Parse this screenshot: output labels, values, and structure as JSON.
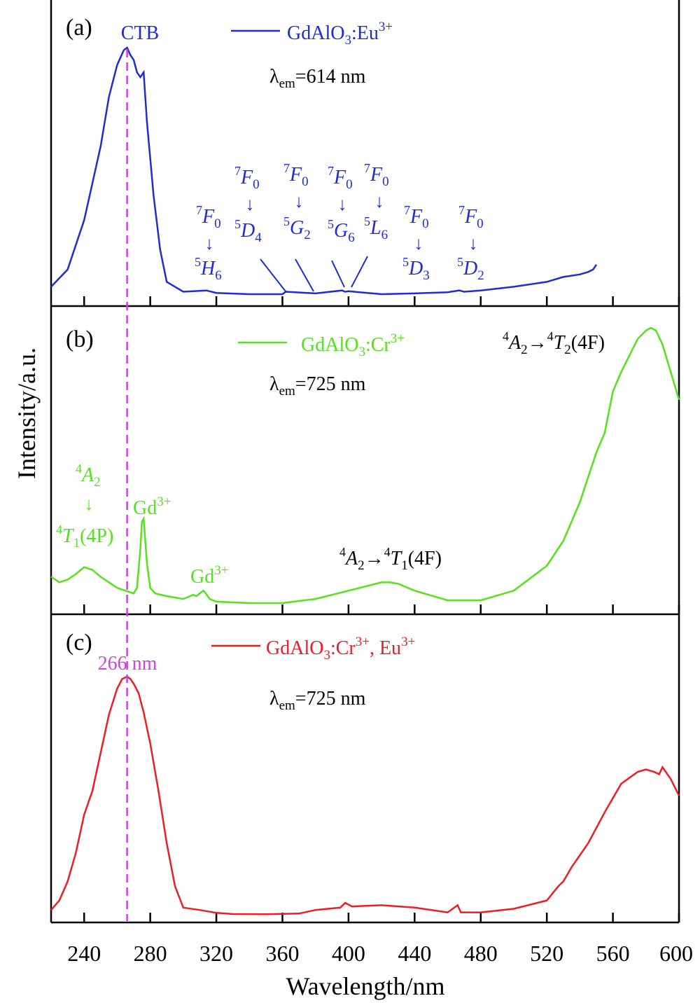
{
  "colors": {
    "panel_a": "#1f2bd6",
    "panel_b": "#55e21c",
    "panel_c": "#ee1c24",
    "guide": "#cc44dd",
    "axis": "#000000"
  },
  "chart_data": [
    {
      "type": "line",
      "panel": "(a)",
      "series": [
        {
          "name": "GdAlO3:Eu3+",
          "x": [
            220,
            230,
            240,
            250,
            255,
            260,
            264,
            266,
            268,
            270,
            272,
            274,
            276,
            278,
            282,
            286,
            290,
            300,
            314,
            320,
            340,
            360,
            362,
            380,
            396,
            398,
            400,
            420,
            440,
            460,
            467,
            470,
            480,
            500,
            520,
            530,
            540,
            545,
            548,
            550
          ],
          "y": [
            0.03,
            0.1,
            0.3,
            0.6,
            0.8,
            0.93,
            0.99,
            1.0,
            0.97,
            0.95,
            0.9,
            0.88,
            0.9,
            0.7,
            0.4,
            0.18,
            0.05,
            0.01,
            0.015,
            0.005,
            0.0,
            0.0,
            0.01,
            0.003,
            0.015,
            0.01,
            0.012,
            0.0,
            0.003,
            0.008,
            0.015,
            0.01,
            0.015,
            0.03,
            0.05,
            0.07,
            0.08,
            0.09,
            0.1,
            0.12
          ]
        }
      ],
      "annotations": {
        "peak_label": "CTB",
        "lambda_em": "λem=614 nm",
        "transitions": [
          {
            "upper": "7F0",
            "lower": "5H6"
          },
          {
            "upper": "7F0",
            "lower": "5D4"
          },
          {
            "upper": "7F0",
            "lower": "5G2"
          },
          {
            "upper": "7F0",
            "lower": "5G6"
          },
          {
            "upper": "7F0",
            "lower": "5L6"
          },
          {
            "upper": "7F0",
            "lower": "5D3"
          },
          {
            "upper": "7F0",
            "lower": "5D2"
          }
        ]
      }
    },
    {
      "type": "line",
      "panel": "(b)",
      "series": [
        {
          "name": "GdAlO3:Cr3+",
          "x": [
            220,
            225,
            230,
            235,
            240,
            245,
            250,
            255,
            260,
            265,
            270,
            272,
            274,
            275,
            276,
            278,
            280,
            283,
            290,
            300,
            306,
            308,
            310,
            312,
            313,
            316,
            320,
            340,
            360,
            380,
            400,
            420,
            425,
            430,
            440,
            460,
            480,
            500,
            520,
            530,
            540,
            550,
            555,
            560,
            565,
            570,
            575,
            580,
            583,
            586,
            590,
            595,
            600
          ],
          "y": [
            0.1,
            0.08,
            0.09,
            0.11,
            0.135,
            0.125,
            0.1,
            0.08,
            0.06,
            0.05,
            0.04,
            0.06,
            0.2,
            0.3,
            0.31,
            0.15,
            0.06,
            0.04,
            0.03,
            0.02,
            0.035,
            0.03,
            0.04,
            0.05,
            0.045,
            0.02,
            0.01,
            0.005,
            0.005,
            0.02,
            0.05,
            0.08,
            0.08,
            0.075,
            0.05,
            0.015,
            0.015,
            0.05,
            0.14,
            0.23,
            0.37,
            0.55,
            0.62,
            0.77,
            0.84,
            0.9,
            0.96,
            0.99,
            1.0,
            0.99,
            0.94,
            0.84,
            0.74
          ]
        }
      ],
      "annotations": {
        "lambda_em": "λem=725 nm",
        "labels": [
          "4A2",
          "4T1(4P)",
          "Gd3+",
          "Gd3+",
          "4A2→4T1(4F)",
          "4A2→4T2(4F)"
        ]
      }
    },
    {
      "type": "line",
      "panel": "(c)",
      "series": [
        {
          "name": "GdAlO3:Cr3+, Eu3+",
          "x": [
            220,
            225,
            230,
            235,
            240,
            242,
            245,
            250,
            255,
            260,
            263,
            266,
            268,
            270,
            273,
            276,
            280,
            285,
            290,
            295,
            300,
            310,
            320,
            330,
            350,
            370,
            380,
            395,
            398,
            402,
            420,
            440,
            460,
            466,
            468,
            480,
            500,
            520,
            527,
            530,
            535,
            545,
            555,
            565,
            575,
            580,
            585,
            588,
            590,
            595,
            600
          ],
          "y": [
            0.02,
            0.06,
            0.14,
            0.26,
            0.42,
            0.46,
            0.52,
            0.68,
            0.84,
            0.95,
            0.99,
            1.0,
            0.99,
            0.97,
            0.93,
            0.85,
            0.72,
            0.52,
            0.3,
            0.12,
            0.03,
            0.02,
            0.008,
            0.003,
            0.002,
            0.005,
            0.02,
            0.03,
            0.05,
            0.035,
            0.04,
            0.03,
            0.01,
            0.04,
            0.01,
            0.01,
            0.025,
            0.06,
            0.12,
            0.14,
            0.2,
            0.3,
            0.43,
            0.55,
            0.6,
            0.61,
            0.6,
            0.59,
            0.62,
            0.57,
            0.5
          ]
        }
      ],
      "annotations": {
        "lambda_em": "λem=725 nm",
        "guide_label": "266 nm",
        "guide_x": 266
      }
    }
  ],
  "axes": {
    "xlabel": "Wavelength/nm",
    "ylabel": "Intensity/a.u.",
    "xlim": [
      220,
      600
    ],
    "x_ticks": [
      240,
      280,
      320,
      360,
      400,
      440,
      480,
      520,
      560,
      600
    ]
  }
}
